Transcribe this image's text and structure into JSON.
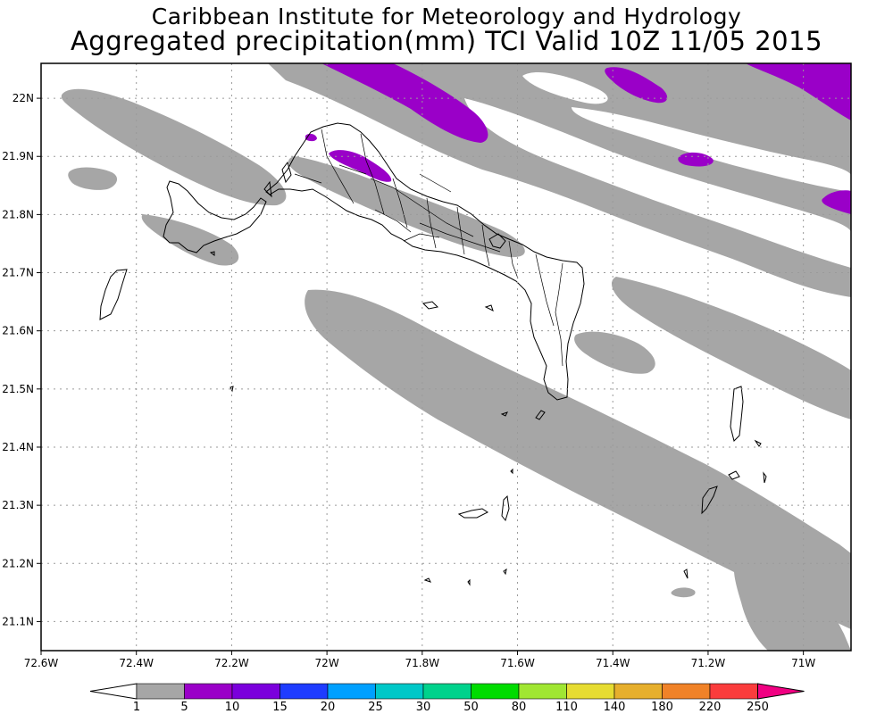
{
  "title": {
    "line1": "Caribbean Institute for Meteorology and Hydrology",
    "line2": "Aggregated precipitation(mm) TCI Valid 10Z 11/05 2015"
  },
  "map": {
    "lon_min": -72.6,
    "lon_max": -70.9,
    "lat_min": 21.05,
    "lat_max": 22.06,
    "gridlines": true,
    "x_ticks": [
      {
        "value": -72.6,
        "label": "72.6W"
      },
      {
        "value": -72.4,
        "label": "72.4W"
      },
      {
        "value": -72.2,
        "label": "72.2W"
      },
      {
        "value": -72.0,
        "label": "72W"
      },
      {
        "value": -71.8,
        "label": "71.8W"
      },
      {
        "value": -71.6,
        "label": "71.6W"
      },
      {
        "value": -71.4,
        "label": "71.4W"
      },
      {
        "value": -71.2,
        "label": "71.2W"
      },
      {
        "value": -71.0,
        "label": "71W"
      }
    ],
    "y_ticks": [
      {
        "value": 22.0,
        "label": "22N"
      },
      {
        "value": 21.9,
        "label": "21.9N"
      },
      {
        "value": 21.8,
        "label": "21.8N"
      },
      {
        "value": 21.7,
        "label": "21.7N"
      },
      {
        "value": 21.6,
        "label": "21.6N"
      },
      {
        "value": 21.5,
        "label": "21.5N"
      },
      {
        "value": 21.4,
        "label": "21.4N"
      },
      {
        "value": 21.3,
        "label": "21.3N"
      },
      {
        "value": 21.2,
        "label": "21.2N"
      },
      {
        "value": 21.1,
        "label": "21.1N"
      }
    ]
  },
  "colorbar": {
    "levels": [
      "1",
      "5",
      "10",
      "15",
      "20",
      "25",
      "30",
      "50",
      "80",
      "110",
      "140",
      "180",
      "220",
      "250"
    ],
    "colors": [
      "#a6a6a6",
      "#9a00c8",
      "#7b00dc",
      "#1e3cff",
      "#00a0ff",
      "#00c8c8",
      "#00d28c",
      "#00dc00",
      "#a0e632",
      "#e6dc32",
      "#e6af2d",
      "#f08228",
      "#fa3c3c",
      "#f00082"
    ],
    "below_color": "#ffffff"
  },
  "colors": {
    "light_rain": "#a6a6a6",
    "moderate_rain": "#9a00c8",
    "land_outline": "#000000"
  }
}
